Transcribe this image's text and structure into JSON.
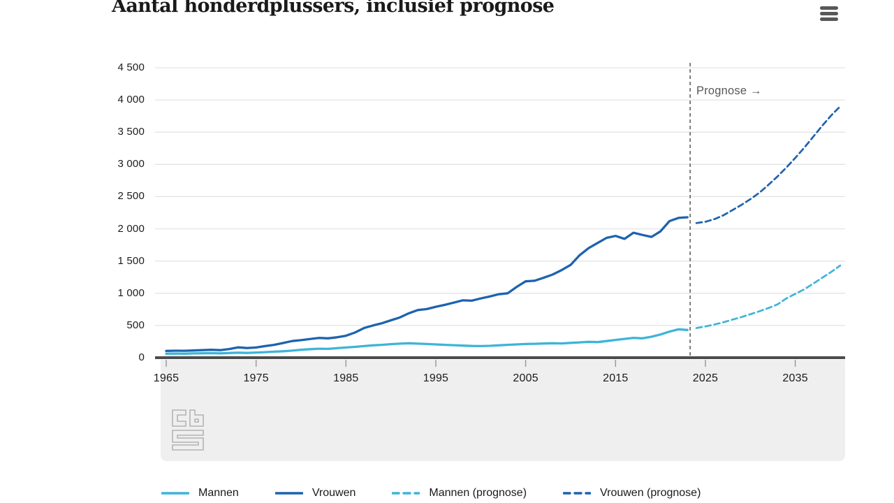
{
  "title": "Aantal honderdplussers, inclusief prognose",
  "menu": {
    "tooltip": "Menu"
  },
  "colors": {
    "mannen": "#3eb4d8",
    "vrouwen": "#1d63af",
    "grid": "#e3e3e3",
    "axis": "#4c4c4c",
    "tick": "#9b9b9b",
    "divider": "#4a4a4a",
    "panel": "#efefef",
    "text": "#1b1b1c",
    "muted": "#57585c",
    "logo": "#b3b3b3"
  },
  "chart_data": {
    "type": "line",
    "title": "Aantal honderdplussers, inclusief prognose",
    "xlabel": "",
    "ylabel": "",
    "ylim": [
      0,
      4500
    ],
    "xlim": [
      1963.8,
      2040.6
    ],
    "grid": true,
    "legend_position": "bottom",
    "forecast_divider_year": 2023.3,
    "x_ticks": [
      1965,
      1975,
      1985,
      1995,
      2005,
      2015,
      2025,
      2035
    ],
    "x_tick_labels": [
      "1965",
      "1975",
      "1985",
      "1995",
      "2005",
      "2015",
      "2025",
      "2035"
    ],
    "y_ticks": [
      {
        "value": 0,
        "label": "0"
      },
      {
        "value": 500,
        "label": "500"
      },
      {
        "value": 1000,
        "label": "1 000"
      },
      {
        "value": 1500,
        "label": "1 500"
      },
      {
        "value": 2000,
        "label": "2 000"
      },
      {
        "value": 2500,
        "label": "2 500"
      },
      {
        "value": 3000,
        "label": "3 000"
      },
      {
        "value": 3500,
        "label": "3 500"
      },
      {
        "value": 4000,
        "label": "4 000"
      },
      {
        "value": 4500,
        "label": "4 500"
      }
    ],
    "annotations": [
      {
        "text": "Prognose →",
        "x": 2024,
        "y": 4150
      }
    ],
    "series": [
      {
        "name": "Mannen",
        "color_key": "mannen",
        "style": "solid",
        "x": [
          1965,
          1966,
          1967,
          1968,
          1969,
          1970,
          1971,
          1972,
          1973,
          1974,
          1975,
          1976,
          1977,
          1978,
          1979,
          1980,
          1981,
          1982,
          1983,
          1984,
          1985,
          1986,
          1987,
          1988,
          1989,
          1990,
          1991,
          1992,
          1993,
          1994,
          1995,
          1996,
          1997,
          1998,
          1999,
          2000,
          2001,
          2002,
          2003,
          2004,
          2005,
          2006,
          2007,
          2008,
          2009,
          2010,
          2011,
          2012,
          2013,
          2014,
          2015,
          2016,
          2017,
          2018,
          2019,
          2020,
          2021,
          2022,
          2023
        ],
        "values": [
          62,
          64,
          62,
          66,
          68,
          70,
          67,
          73,
          78,
          74,
          80,
          86,
          93,
          100,
          110,
          122,
          132,
          140,
          137,
          148,
          158,
          168,
          180,
          192,
          200,
          210,
          218,
          224,
          218,
          212,
          206,
          200,
          194,
          188,
          182,
          180,
          184,
          192,
          200,
          206,
          212,
          216,
          220,
          224,
          221,
          230,
          238,
          246,
          242,
          258,
          275,
          292,
          308,
          300,
          325,
          360,
          405,
          440,
          430
        ]
      },
      {
        "name": "Vrouwen",
        "color_key": "vrouwen",
        "style": "solid",
        "x": [
          1965,
          1966,
          1967,
          1968,
          1969,
          1970,
          1971,
          1972,
          1973,
          1974,
          1975,
          1976,
          1977,
          1978,
          1979,
          1980,
          1981,
          1982,
          1983,
          1984,
          1985,
          1986,
          1987,
          1988,
          1989,
          1990,
          1991,
          1992,
          1993,
          1994,
          1995,
          1996,
          1997,
          1998,
          1999,
          2000,
          2001,
          2002,
          2003,
          2004,
          2005,
          2006,
          2007,
          2008,
          2009,
          2010,
          2011,
          2012,
          2013,
          2014,
          2015,
          2016,
          2017,
          2018,
          2019,
          2020,
          2021,
          2022,
          2023
        ],
        "values": [
          105,
          108,
          107,
          112,
          117,
          122,
          117,
          135,
          160,
          150,
          158,
          180,
          200,
          228,
          258,
          272,
          290,
          307,
          300,
          317,
          340,
          390,
          460,
          500,
          535,
          580,
          625,
          690,
          740,
          755,
          790,
          820,
          855,
          890,
          885,
          920,
          950,
          985,
          1000,
          1100,
          1185,
          1195,
          1240,
          1290,
          1360,
          1440,
          1590,
          1700,
          1780,
          1860,
          1890,
          1845,
          1940,
          1905,
          1875,
          1960,
          2120,
          2170,
          2180
        ]
      },
      {
        "name": "Mannen (prognose)",
        "color_key": "mannen",
        "style": "dashed",
        "x": [
          2024,
          2025,
          2026,
          2027,
          2028,
          2029,
          2030,
          2031,
          2032,
          2033,
          2034,
          2035,
          2036,
          2037,
          2038,
          2039,
          2040
        ],
        "values": [
          460,
          485,
          515,
          550,
          590,
          630,
          675,
          720,
          770,
          825,
          920,
          990,
          1060,
          1150,
          1240,
          1330,
          1430
        ]
      },
      {
        "name": "Vrouwen (prognose)",
        "color_key": "vrouwen",
        "style": "dashed",
        "x": [
          2024,
          2025,
          2026,
          2027,
          2028,
          2029,
          2030,
          2031,
          2032,
          2033,
          2034,
          2035,
          2036,
          2037,
          2038,
          2039,
          2040
        ],
        "values": [
          2090,
          2110,
          2150,
          2210,
          2290,
          2370,
          2460,
          2560,
          2680,
          2810,
          2950,
          3100,
          3260,
          3430,
          3600,
          3760,
          3900
        ]
      }
    ]
  }
}
